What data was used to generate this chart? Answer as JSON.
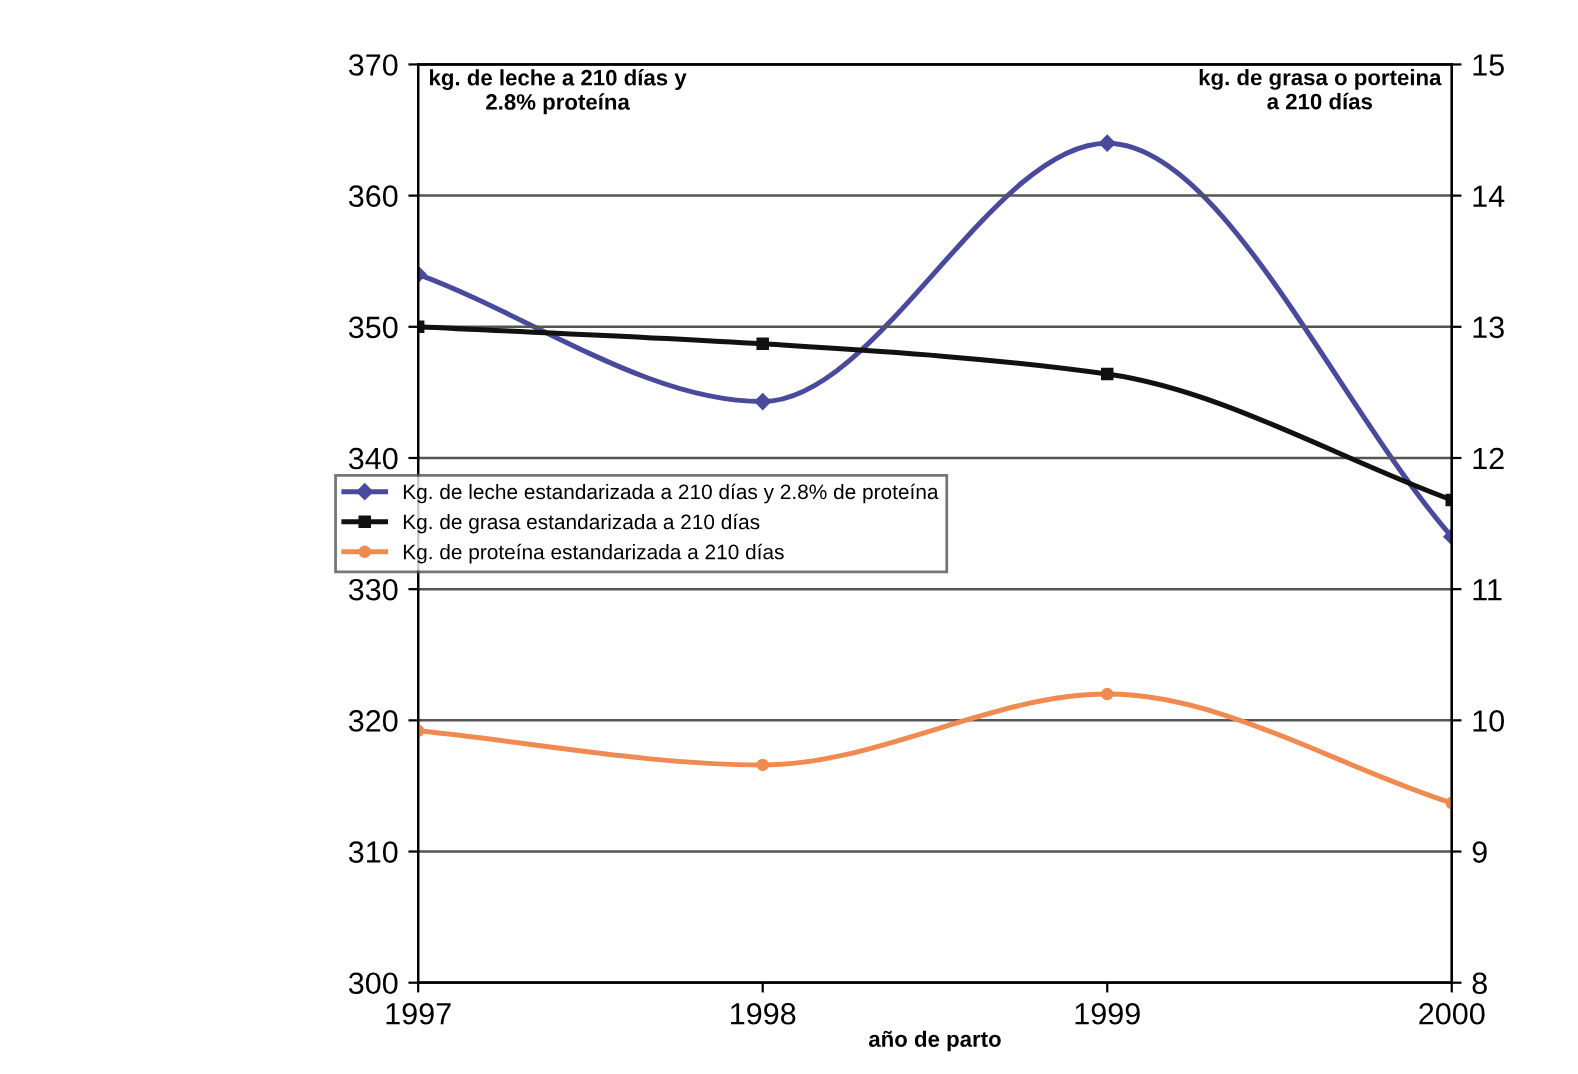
{
  "chart_data": {
    "type": "line",
    "xlabel": "año de parto",
    "ylabel": "kg. de leche a 210 días y\n2.8% proteína",
    "y2label": "kg. de grasa o porteina\na 210 días",
    "x": [
      1997,
      1998,
      1999,
      2000
    ],
    "series": [
      {
        "name": "Kg. de leche estandarizada a 210 días y 2.8% de proteína",
        "color": "#4a4a9c",
        "values": [
          354,
          344.3,
          364,
          334
        ],
        "marker": "diamond"
      },
      {
        "name": "Kg. de grasa estandarizada a 210 días",
        "color": "#111111",
        "values": [
          13.0,
          12.87,
          12.64,
          11.68
        ],
        "axis": "y2",
        "marker": "square"
      },
      {
        "name": "Kg. de proteína estandarizada a 210 días",
        "color": "#f08a50",
        "values": [
          9.92,
          9.66,
          10.2,
          9.37
        ],
        "axis": "y2",
        "marker": "circle"
      }
    ],
    "xlim": [
      1997,
      2000
    ],
    "xticks": [
      1997,
      1998,
      1999,
      2000
    ],
    "ylim": [
      300,
      370
    ],
    "yticks": [
      300,
      310,
      320,
      330,
      340,
      350,
      360,
      370
    ],
    "y2lim": [
      8,
      15
    ],
    "y2ticks": [
      8,
      9,
      10,
      11,
      12,
      13,
      14,
      15
    ],
    "grid": "y",
    "legend": "left",
    "line_style": "solid"
  }
}
